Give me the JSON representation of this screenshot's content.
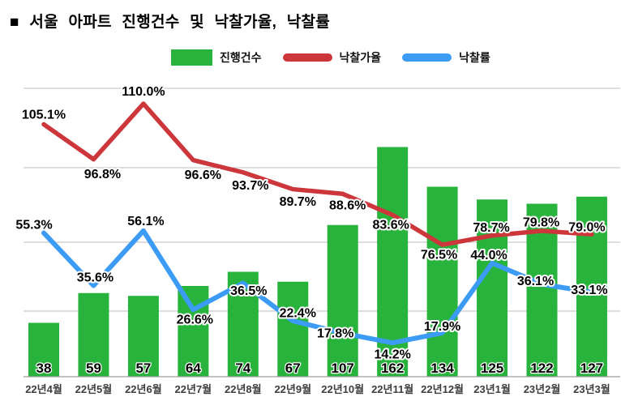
{
  "title": "■ 서울 아파트 진행건수 및 낙찰가율, 낙찰률",
  "legend": [
    {
      "label": "진행건수",
      "type": "bar",
      "color": "#28b43c"
    },
    {
      "label": "낙찰가율",
      "type": "line",
      "color": "#cd373c"
    },
    {
      "label": "낙찰률",
      "type": "line",
      "color": "#3c9bf5"
    }
  ],
  "chart_data": {
    "type": "combo",
    "categories": [
      "22년4월",
      "22년5월",
      "22년6월",
      "22년7월",
      "22년8월",
      "22년9월",
      "22년10월",
      "22년11월",
      "22년12월",
      "23년1월",
      "23년2월",
      "23년3월"
    ],
    "series": [
      {
        "name": "진행건수",
        "type": "bar",
        "color": "#28b43c",
        "values": [
          38,
          59,
          57,
          64,
          74,
          67,
          107,
          162,
          134,
          125,
          122,
          127
        ],
        "labels": [
          "38",
          "59",
          "57",
          "64",
          "74",
          "67",
          "107",
          "162",
          "134",
          "125",
          "122",
          "127"
        ]
      },
      {
        "name": "낙찰가율",
        "type": "line",
        "color": "#cd373c",
        "values": [
          105.1,
          96.8,
          110.0,
          96.6,
          93.7,
          89.7,
          88.6,
          83.6,
          76.5,
          78.7,
          79.8,
          79.0
        ],
        "labels": [
          "105.1%",
          "96.8%",
          "110.0%",
          "96.6%",
          "93.7%",
          "89.7%",
          "88.6%",
          "83.6%",
          "76.5%",
          "78.7%",
          "79.8%",
          "79.0%"
        ]
      },
      {
        "name": "낙찰률",
        "type": "line",
        "color": "#3c9bf5",
        "values": [
          55.3,
          35.6,
          56.1,
          26.6,
          36.5,
          22.4,
          17.8,
          14.2,
          17.9,
          44.0,
          36.1,
          33.1
        ],
        "labels": [
          "55.3%",
          "35.6%",
          "56.1%",
          "26.6%",
          "36.5%",
          "22.4%",
          "17.8%",
          "14.2%",
          "17.9%",
          "44.0%",
          "36.1%",
          "33.1%"
        ]
      }
    ],
    "title": "서울 아파트 진행건수 및 낙찰가율, 낙찰률",
    "xlabel": "",
    "ylabel": "",
    "axes_hidden": true,
    "grid": "horizontal",
    "legend_position": "top",
    "point_labels": true,
    "bar_value_labels": "inside-bottom"
  }
}
